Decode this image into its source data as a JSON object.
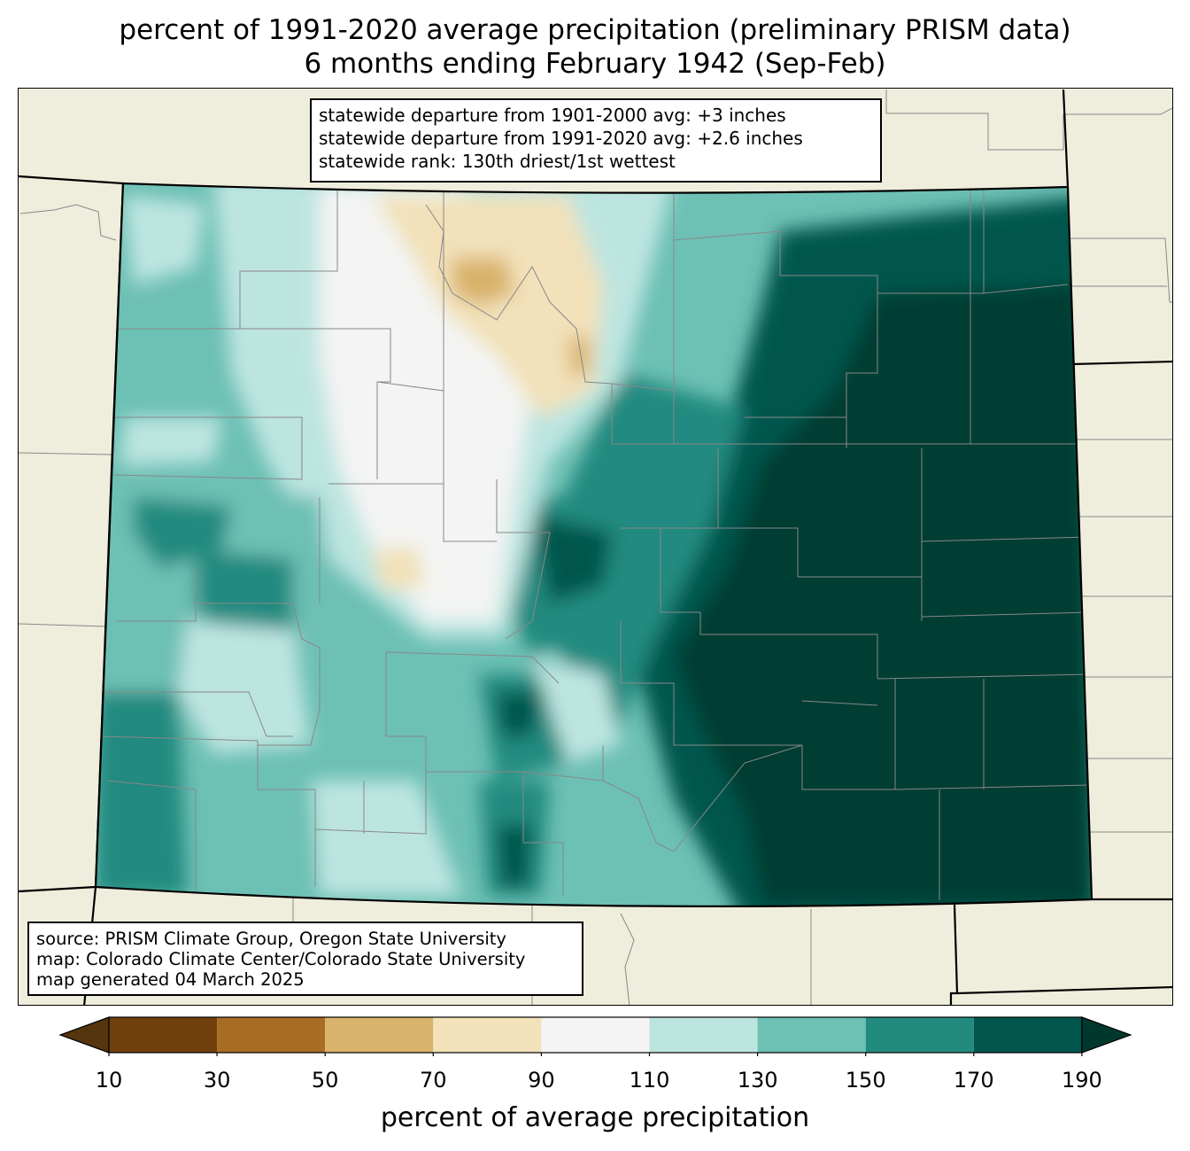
{
  "title": {
    "line1": "percent of 1991-2020 average precipitation (preliminary PRISM data)",
    "line2": "6 months ending February 1942 (Sep-Feb)"
  },
  "stats_box": {
    "line1": "statewide departure from 1901-2000 avg: +3 inches",
    "line2": "statewide departure from 1991-2020 avg: +2.6 inches",
    "line3": "statewide rank: 130th driest/1st wettest"
  },
  "source_box": {
    "line1": "source: PRISM Climate Group, Oregon State University",
    "line2": "map: Colorado Climate Center/Colorado State University",
    "line3": "map generated 04 March 2025"
  },
  "colorbar": {
    "label": "percent of average precipitation",
    "ticks": [
      "10",
      "30",
      "50",
      "70",
      "90",
      "110",
      "130",
      "150",
      "170",
      "190"
    ],
    "colors": [
      "#703f0d",
      "#a86d25",
      "#d9b26b",
      "#f2e1b9",
      "#f3f4f3",
      "#bde5e0",
      "#6dc0b4",
      "#238a80",
      "#01574d"
    ],
    "under_color": "#55350d",
    "over_color": "#00382e"
  },
  "map": {
    "background_color": "#efeedd",
    "region": "Colorado",
    "dominant_east": "#003d33"
  }
}
